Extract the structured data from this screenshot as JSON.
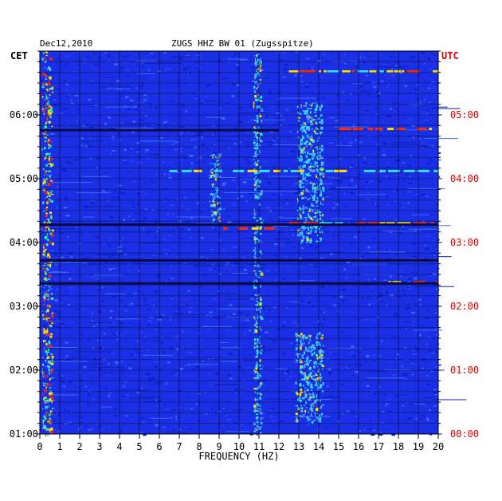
{
  "header": {
    "date": "Dec12,2010",
    "station": "ZUGS HHZ BW 01 (Zugsspitze)"
  },
  "colors": {
    "background": "#1b2fe6",
    "grid": "#000000",
    "local_axis": "#000000",
    "utc_axis": "#e00000",
    "hot": "#ff2a00",
    "warm": "#ffe000",
    "cool": "#33ddff"
  },
  "chart_data": {
    "type": "heatmap",
    "title": "ZUGS HHZ BW 01 (Zugsspitze)",
    "xlabel": "FREQUENCY (HZ)",
    "xlim": [
      0,
      20
    ],
    "x_ticks": [
      "0",
      "1",
      "2",
      "3",
      "4",
      "5",
      "6",
      "7",
      "8",
      "9",
      "10",
      "11",
      "12",
      "13",
      "14",
      "15",
      "16",
      "17",
      "18",
      "19",
      "20"
    ],
    "y_left_title": "CET",
    "y_right_title": "UTC",
    "y_left_ticks": [
      "01:00",
      "02:00",
      "03:00",
      "04:00",
      "05:00",
      "06:00"
    ],
    "y_right_ticks": [
      "00:00",
      "01:00",
      "02:00",
      "03:00",
      "04:00",
      "05:00"
    ],
    "time_range_cet": [
      "01:00",
      "07:00"
    ],
    "grid": true,
    "features": [
      {
        "kind": "band",
        "freq_from": 0.1,
        "freq_to": 0.6,
        "time_from": 1.0,
        "time_to": 7.0,
        "level": "hot"
      },
      {
        "kind": "band",
        "freq_from": 10.7,
        "freq_to": 11.1,
        "time_from": 1.0,
        "time_to": 7.0,
        "level": "cool"
      },
      {
        "kind": "band",
        "freq_from": 12.8,
        "freq_to": 14.2,
        "time_from": 1.2,
        "time_to": 2.6,
        "level": "cool"
      },
      {
        "kind": "band",
        "freq_from": 12.9,
        "freq_to": 14.2,
        "time_from": 4.0,
        "time_to": 6.2,
        "level": "cool"
      },
      {
        "kind": "band",
        "freq_from": 8.5,
        "freq_to": 9.0,
        "time_from": 4.3,
        "time_to": 5.4,
        "level": "cool"
      },
      {
        "kind": "line",
        "freq_from": 12.5,
        "freq_to": 20.0,
        "time": 4.3,
        "level": "hot"
      },
      {
        "kind": "line",
        "freq_from": 9.2,
        "freq_to": 12.0,
        "time": 4.22,
        "level": "warm"
      },
      {
        "kind": "line",
        "freq_from": 6.5,
        "freq_to": 20.0,
        "time": 5.12,
        "level": "cool"
      },
      {
        "kind": "line",
        "freq_from": 15.0,
        "freq_to": 20.0,
        "time": 5.78,
        "level": "hot"
      },
      {
        "kind": "line",
        "freq_from": 15.5,
        "freq_to": 20.0,
        "time": 3.72,
        "level": "warm"
      },
      {
        "kind": "line",
        "freq_from": 17.5,
        "freq_to": 20.0,
        "time": 3.38,
        "level": "hot"
      },
      {
        "kind": "line",
        "freq_from": 12.5,
        "freq_to": 20.0,
        "time": 6.68,
        "level": "warm"
      },
      {
        "kind": "gap",
        "freq_from": 0.0,
        "freq_to": 12.0,
        "time": 5.76
      },
      {
        "kind": "gap",
        "freq_from": 0.0,
        "freq_to": 20.0,
        "time": 4.28
      },
      {
        "kind": "gap",
        "freq_from": 0.0,
        "freq_to": 20.0,
        "time": 3.72
      },
      {
        "kind": "gap",
        "freq_from": 0.0,
        "freq_to": 20.0,
        "time": 3.36
      }
    ]
  }
}
